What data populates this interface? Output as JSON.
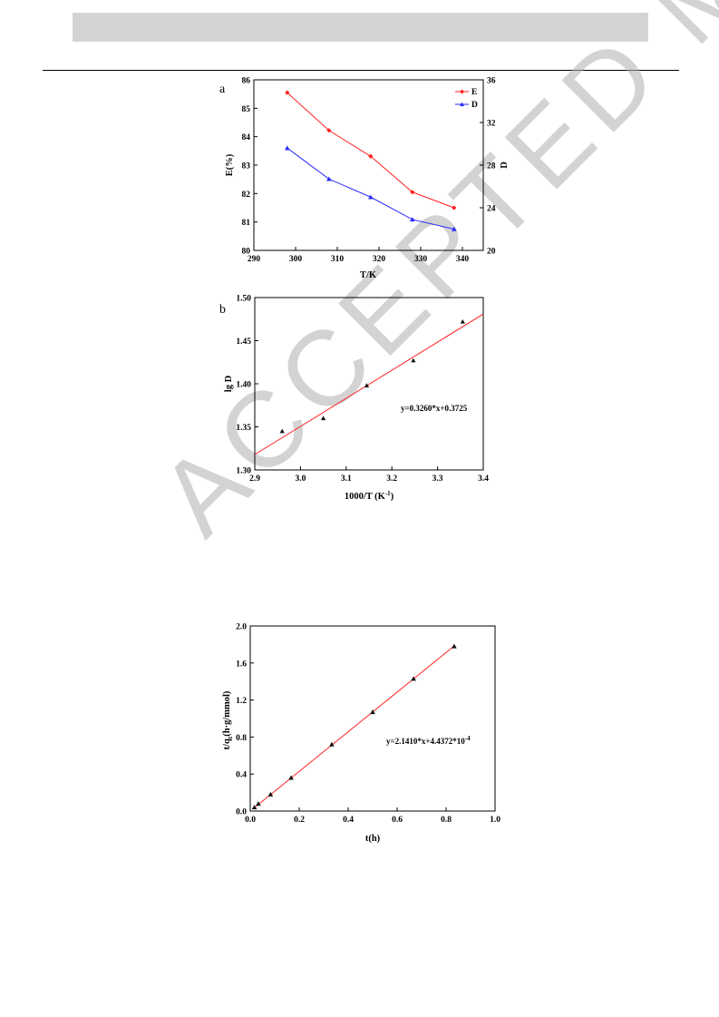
{
  "header": {
    "bar_color": "#d4d4d4"
  },
  "watermark": {
    "text": "ACCEPTED MANUSCRIPT"
  },
  "chart_data": [
    {
      "type": "line",
      "panel": "a",
      "x": [
        298,
        308,
        318,
        328,
        338
      ],
      "xlabel": "T/K",
      "ylabel": "E(%)",
      "y2label": "D",
      "xlim": [
        290,
        345
      ],
      "ylim": [
        80,
        86
      ],
      "y2lim": [
        20,
        36
      ],
      "xticks": [
        "290",
        "300",
        "310",
        "320",
        "330",
        "340"
      ],
      "yticks": [
        "80",
        "81",
        "82",
        "83",
        "84",
        "85",
        "86"
      ],
      "y2ticks": [
        "20",
        "24",
        "28",
        "32",
        "36"
      ],
      "series": [
        {
          "name": "E",
          "axis": "left",
          "marker": "diamond",
          "color": "#ff2020",
          "values": [
            85.55,
            84.22,
            83.31,
            82.05,
            81.5
          ]
        },
        {
          "name": "D",
          "axis": "right",
          "marker": "triangle",
          "color": "#2a2aff",
          "values": [
            29.6,
            26.7,
            25.0,
            22.9,
            22.0
          ]
        }
      ],
      "legend": "top-right"
    },
    {
      "type": "scatter",
      "panel": "b",
      "x": [
        2.96,
        3.05,
        3.145,
        3.247,
        3.355
      ],
      "y": [
        1.345,
        1.36,
        1.398,
        1.427,
        1.472
      ],
      "xlabel": "1000/T (K",
      "xlabel_sup": "-1",
      "xlabel_end": ")",
      "ylabel": "lg D",
      "xlim": [
        2.9,
        3.4
      ],
      "ylim": [
        1.3,
        1.5
      ],
      "xticks": [
        "2.9",
        "3.0",
        "3.1",
        "3.2",
        "3.3",
        "3.4"
      ],
      "yticks": [
        "1.30",
        "1.35",
        "1.40",
        "1.45",
        "1.50"
      ],
      "fit": {
        "slope": 0.326,
        "intercept": 0.3725,
        "color": "#ff2020"
      },
      "annotation": "y=0.3260*x+0.3725"
    },
    {
      "type": "scatter",
      "x": [
        0.017,
        0.033,
        0.083,
        0.167,
        0.333,
        0.5,
        0.667,
        0.833
      ],
      "y": [
        0.04,
        0.08,
        0.18,
        0.36,
        0.72,
        1.07,
        1.43,
        1.78
      ],
      "xlabel": "t(h)",
      "ylabel_pre": "t/q",
      "ylabel_sub": "t",
      "ylabel_post": "(h·g/mmol)",
      "xlim": [
        0.0,
        1.0
      ],
      "ylim": [
        0.0,
        2.0
      ],
      "xticks": [
        "0.0",
        "0.2",
        "0.4",
        "0.6",
        "0.8",
        "1.0"
      ],
      "yticks": [
        "0.0",
        "0.4",
        "0.8",
        "1.2",
        "1.6",
        "2.0"
      ],
      "fit": {
        "slope": 2.141,
        "intercept": 0.00044372,
        "color": "#ff2020"
      },
      "annotation_main": "y=2.1410*x+4.4372*10",
      "annotation_sup": "-4"
    }
  ]
}
